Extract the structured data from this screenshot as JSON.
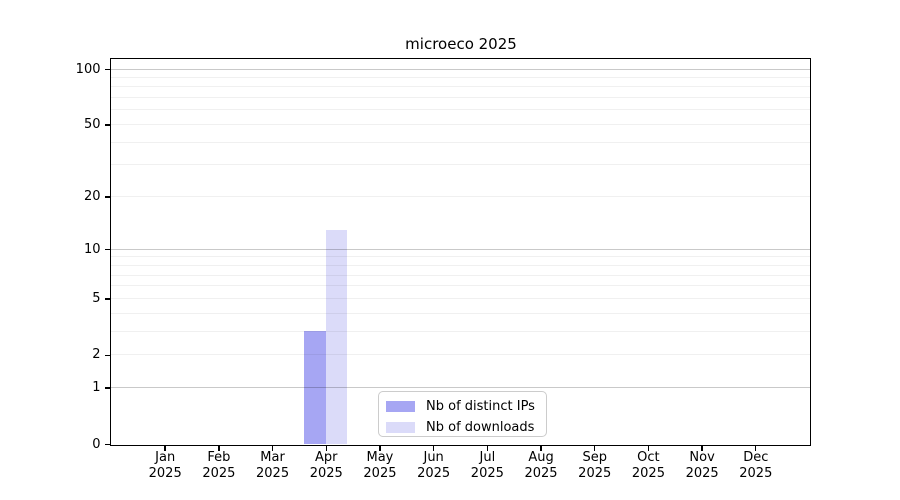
{
  "title": "microeco 2025",
  "legend": {
    "items": [
      {
        "label": "Nb of distinct IPs",
        "color": "#a6a6f3"
      },
      {
        "label": "Nb of downloads",
        "color": "#dbdbf9"
      }
    ]
  },
  "x_axis": {
    "months": [
      "Jan",
      "Feb",
      "Mar",
      "Apr",
      "May",
      "Jun",
      "Jul",
      "Aug",
      "Sep",
      "Oct",
      "Nov",
      "Dec"
    ],
    "year": "2025"
  },
  "y_axis": {
    "tick_values": [
      0,
      1,
      2,
      5,
      10,
      20,
      50,
      100
    ]
  },
  "chart_data": {
    "type": "bar",
    "title": "microeco 2025",
    "categories": [
      "Jan 2025",
      "Feb 2025",
      "Mar 2025",
      "Apr 2025",
      "May 2025",
      "Jun 2025",
      "Jul 2025",
      "Aug 2025",
      "Sep 2025",
      "Oct 2025",
      "Nov 2025",
      "Dec 2025"
    ],
    "series": [
      {
        "name": "Nb of distinct IPs",
        "color": "#a6a6f3",
        "values": [
          0,
          0,
          0,
          3,
          0,
          0,
          0,
          0,
          0,
          0,
          0,
          0
        ]
      },
      {
        "name": "Nb of downloads",
        "color": "#dbdbf9",
        "values": [
          0,
          0,
          0,
          13,
          0,
          0,
          0,
          0,
          0,
          0,
          0,
          0
        ]
      }
    ],
    "xlabel": "",
    "ylabel": "",
    "y_scale": "log1p",
    "ylim": [
      0,
      113
    ],
    "y_ticks_labeled": [
      0,
      1,
      2,
      5,
      10,
      20,
      50,
      100
    ],
    "y_gridlines_major": [
      1,
      10,
      100
    ],
    "y_gridlines_minor": [
      2,
      3,
      4,
      5,
      6,
      7,
      8,
      9,
      20,
      30,
      40,
      50,
      60,
      70,
      80,
      90
    ],
    "grid": "horizontal",
    "legend_position": "inside-bottom-center"
  }
}
